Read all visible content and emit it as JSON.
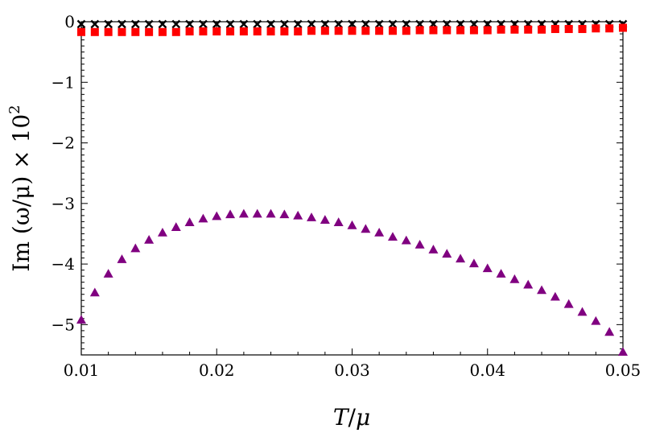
{
  "chart_data": {
    "type": "scatter",
    "title": "",
    "xlabel_main": "T",
    "xlabel_sep": "/",
    "xlabel_sub": "μ",
    "ylabel_text": "Im (ω/μ) × 10",
    "ylabel_sup": "2",
    "xlim": [
      0.01,
      0.05
    ],
    "ylim": [
      -5.5,
      0
    ],
    "xticks": [
      0.01,
      0.02,
      0.03,
      0.04,
      0.05
    ],
    "xtick_labels": [
      "0.01",
      "0.02",
      "0.03",
      "0.04",
      "0.05"
    ],
    "yticks": [
      0,
      -1,
      -2,
      -3,
      -4,
      -5
    ],
    "ytick_labels": [
      "0",
      "−1",
      "−2",
      "−3",
      "−4",
      "−5"
    ],
    "grid": false,
    "series": [
      {
        "marker": "cross",
        "color": "#000000",
        "x": [
          0.01,
          0.011,
          0.012,
          0.013,
          0.014,
          0.015,
          0.016,
          0.017,
          0.018,
          0.019,
          0.02,
          0.021,
          0.022,
          0.023,
          0.024,
          0.025,
          0.026,
          0.027,
          0.028,
          0.029,
          0.03,
          0.031,
          0.032,
          0.033,
          0.034,
          0.035,
          0.036,
          0.037,
          0.038,
          0.039,
          0.04,
          0.041,
          0.042,
          0.043,
          0.044,
          0.045,
          0.046,
          0.047,
          0.048,
          0.049,
          0.05
        ],
        "y": [
          -0.04,
          -0.04,
          -0.04,
          -0.04,
          -0.04,
          -0.04,
          -0.04,
          -0.04,
          -0.04,
          -0.04,
          -0.04,
          -0.04,
          -0.04,
          -0.04,
          -0.04,
          -0.04,
          -0.04,
          -0.04,
          -0.04,
          -0.04,
          -0.04,
          -0.04,
          -0.04,
          -0.04,
          -0.04,
          -0.04,
          -0.04,
          -0.04,
          -0.04,
          -0.04,
          -0.04,
          -0.04,
          -0.04,
          -0.04,
          -0.04,
          -0.04,
          -0.04,
          -0.04,
          -0.04,
          -0.04,
          -0.04
        ]
      },
      {
        "marker": "square",
        "color": "#ff0000",
        "x": [
          0.01,
          0.011,
          0.012,
          0.013,
          0.014,
          0.015,
          0.016,
          0.017,
          0.018,
          0.019,
          0.02,
          0.021,
          0.022,
          0.023,
          0.024,
          0.025,
          0.026,
          0.027,
          0.028,
          0.029,
          0.03,
          0.031,
          0.032,
          0.033,
          0.034,
          0.035,
          0.036,
          0.037,
          0.038,
          0.039,
          0.04,
          0.041,
          0.042,
          0.043,
          0.044,
          0.045,
          0.046,
          0.047,
          0.048,
          0.049,
          0.05
        ],
        "y": [
          -0.17,
          -0.17,
          -0.17,
          -0.17,
          -0.17,
          -0.17,
          -0.17,
          -0.17,
          -0.16,
          -0.16,
          -0.16,
          -0.16,
          -0.16,
          -0.16,
          -0.16,
          -0.16,
          -0.16,
          -0.15,
          -0.15,
          -0.15,
          -0.15,
          -0.15,
          -0.15,
          -0.15,
          -0.15,
          -0.14,
          -0.14,
          -0.14,
          -0.14,
          -0.14,
          -0.14,
          -0.13,
          -0.13,
          -0.13,
          -0.13,
          -0.12,
          -0.12,
          -0.12,
          -0.11,
          -0.11,
          -0.1
        ]
      },
      {
        "marker": "triangle",
        "color": "#800080",
        "x": [
          0.01,
          0.011,
          0.012,
          0.013,
          0.014,
          0.015,
          0.016,
          0.017,
          0.018,
          0.019,
          0.02,
          0.021,
          0.022,
          0.023,
          0.024,
          0.025,
          0.026,
          0.027,
          0.028,
          0.029,
          0.03,
          0.031,
          0.032,
          0.033,
          0.034,
          0.035,
          0.036,
          0.037,
          0.038,
          0.039,
          0.04,
          0.041,
          0.042,
          0.043,
          0.044,
          0.045,
          0.046,
          0.047,
          0.048,
          0.049,
          0.05
        ],
        "y": [
          -4.92,
          -4.47,
          -4.16,
          -3.92,
          -3.74,
          -3.6,
          -3.48,
          -3.39,
          -3.31,
          -3.25,
          -3.21,
          -3.18,
          -3.17,
          -3.17,
          -3.17,
          -3.18,
          -3.2,
          -3.23,
          -3.27,
          -3.31,
          -3.36,
          -3.42,
          -3.48,
          -3.55,
          -3.61,
          -3.68,
          -3.76,
          -3.83,
          -3.91,
          -3.99,
          -4.07,
          -4.16,
          -4.25,
          -4.34,
          -4.43,
          -4.54,
          -4.66,
          -4.79,
          -4.94,
          -5.12,
          -5.45
        ]
      }
    ]
  }
}
